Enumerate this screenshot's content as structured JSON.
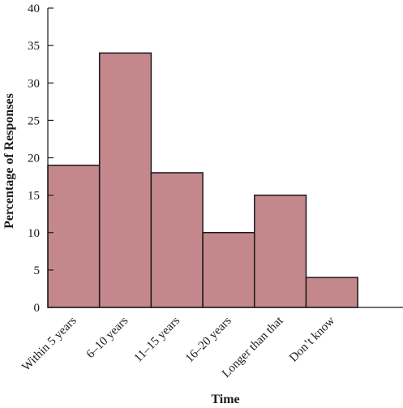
{
  "chart_data": {
    "type": "bar",
    "categories": [
      "Within 5 years",
      "6–10 years",
      "11–15 years",
      "16–20 years",
      "Longer than that",
      "Don’t know"
    ],
    "values": [
      19,
      34,
      18,
      10,
      15,
      4
    ],
    "xlabel": "Time",
    "ylabel": "Percentage of Responses",
    "ylim": [
      0,
      40
    ],
    "yticks": [
      0,
      5,
      10,
      15,
      20,
      25,
      30,
      35,
      40
    ],
    "grid": false,
    "bar_color": "#c4888c",
    "edge_color": "#1a1a1a"
  }
}
